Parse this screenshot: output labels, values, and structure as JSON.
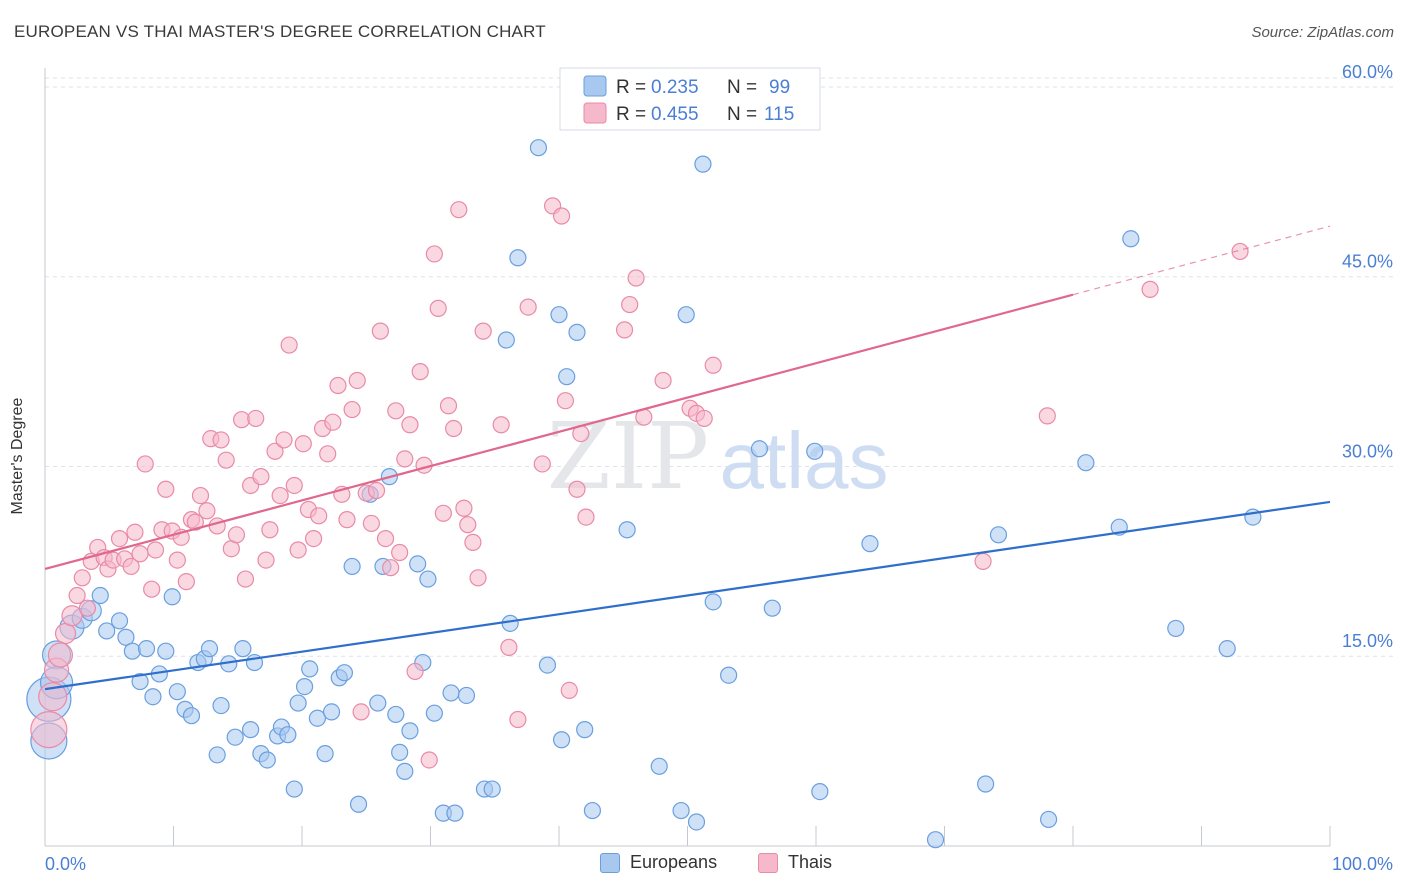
{
  "title": "EUROPEAN VS THAI MASTER'S DEGREE CORRELATION CHART",
  "source": "Source: ZipAtlas.com",
  "watermark": {
    "part1": "ZIP",
    "part2": "atlas"
  },
  "colors": {
    "blue_fill": "#a8c8f0",
    "blue_stroke": "#6a9fdf",
    "blue_line": "#2f6fcc",
    "pink_fill": "#f6b8cb",
    "pink_stroke": "#e98aa8",
    "pink_line": "#e0688f",
    "grid": "#dde2ea",
    "tick_text": "#4a7fd4"
  },
  "stats": [
    {
      "r_label": "R = ",
      "r_value": "0.235",
      "n_label": "N = ",
      "n_value": "99",
      "color": "blue"
    },
    {
      "r_label": "R = ",
      "r_value": "0.455",
      "n_label": "N = ",
      "n_value": "115",
      "color": "pink"
    }
  ],
  "legend": [
    {
      "label": "Europeans",
      "color": "blue"
    },
    {
      "label": "Thais",
      "color": "pink"
    }
  ],
  "chart_data": {
    "type": "scatter",
    "title": "EUROPEAN VS THAI MASTER'S DEGREE CORRELATION CHART",
    "xlabel": "",
    "ylabel": "Master's Degree",
    "xlim": [
      0,
      100
    ],
    "ylim": [
      0,
      61.5
    ],
    "x_tick_labels": [
      "0.0%",
      "100.0%"
    ],
    "y_ticks": [
      15,
      30,
      45,
      60
    ],
    "y_tick_labels": [
      "15.0%",
      "30.0%",
      "45.0%",
      "60.0%"
    ],
    "grid": "horizontal dashed",
    "legend_position": "bottom-center",
    "series": [
      {
        "name": "Europeans",
        "color": "blue",
        "trend": {
          "x0": 0,
          "y0": 12.4,
          "x1": 100,
          "y1": 27.2,
          "dashed_from": null
        },
        "points": [
          [
            0.3,
            8.3,
            1.8
          ],
          [
            0.3,
            11.6,
            2.2
          ],
          [
            0.9,
            15.1,
            1.4
          ],
          [
            0.9,
            12.9,
            1.6
          ],
          [
            2.1,
            17.3,
            1.2
          ],
          [
            2.9,
            18.0,
            1.0
          ],
          [
            3.6,
            18.6,
            1.0
          ],
          [
            4.3,
            19.8,
            0.8
          ],
          [
            4.8,
            17.0,
            0.8
          ],
          [
            5.8,
            17.8,
            0.8
          ],
          [
            6.3,
            16.5,
            0.8
          ],
          [
            6.8,
            15.4,
            0.8
          ],
          [
            7.4,
            13.0,
            0.8
          ],
          [
            7.9,
            15.6,
            0.8
          ],
          [
            8.4,
            11.8,
            0.8
          ],
          [
            8.9,
            13.6,
            0.8
          ],
          [
            9.4,
            15.4,
            0.8
          ],
          [
            9.9,
            19.7,
            0.8
          ],
          [
            10.3,
            12.2,
            0.8
          ],
          [
            10.9,
            10.8,
            0.8
          ],
          [
            11.4,
            10.3,
            0.8
          ],
          [
            11.9,
            14.5,
            0.8
          ],
          [
            12.4,
            14.8,
            0.8
          ],
          [
            12.8,
            15.6,
            0.8
          ],
          [
            13.4,
            7.2,
            0.8
          ],
          [
            13.7,
            11.1,
            0.8
          ],
          [
            14.3,
            14.4,
            0.8
          ],
          [
            14.8,
            8.6,
            0.8
          ],
          [
            15.4,
            15.6,
            0.8
          ],
          [
            16.0,
            9.2,
            0.8
          ],
          [
            16.3,
            14.5,
            0.8
          ],
          [
            16.8,
            7.3,
            0.8
          ],
          [
            17.3,
            6.8,
            0.8
          ],
          [
            18.1,
            8.7,
            0.8
          ],
          [
            18.4,
            9.4,
            0.8
          ],
          [
            18.9,
            8.8,
            0.8
          ],
          [
            19.4,
            4.5,
            0.8
          ],
          [
            19.7,
            11.3,
            0.8
          ],
          [
            20.2,
            12.6,
            0.8
          ],
          [
            20.6,
            14.0,
            0.8
          ],
          [
            21.2,
            10.1,
            0.8
          ],
          [
            21.8,
            7.3,
            0.8
          ],
          [
            22.3,
            10.6,
            0.8
          ],
          [
            22.9,
            13.3,
            0.8
          ],
          [
            23.3,
            13.7,
            0.8
          ],
          [
            23.9,
            22.1,
            0.8
          ],
          [
            24.4,
            3.3,
            0.8
          ],
          [
            25.3,
            27.8,
            0.8
          ],
          [
            25.9,
            11.3,
            0.8
          ],
          [
            26.3,
            22.1,
            0.8
          ],
          [
            26.8,
            29.2,
            0.8
          ],
          [
            27.3,
            10.4,
            0.8
          ],
          [
            27.6,
            7.4,
            0.8
          ],
          [
            28.0,
            5.9,
            0.8
          ],
          [
            28.4,
            9.1,
            0.8
          ],
          [
            29.0,
            22.3,
            0.8
          ],
          [
            29.4,
            14.5,
            0.8
          ],
          [
            29.8,
            21.1,
            0.8
          ],
          [
            30.3,
            10.5,
            0.8
          ],
          [
            31.0,
            2.6,
            0.8
          ],
          [
            31.6,
            12.1,
            0.8
          ],
          [
            31.9,
            2.6,
            0.8
          ],
          [
            32.8,
            11.9,
            0.8
          ],
          [
            34.2,
            4.5,
            0.8
          ],
          [
            34.8,
            4.5,
            0.8
          ],
          [
            35.9,
            40.0,
            0.8
          ],
          [
            36.2,
            17.6,
            0.8
          ],
          [
            36.8,
            46.5,
            0.8
          ],
          [
            38.4,
            55.2,
            0.8
          ],
          [
            39.1,
            14.3,
            0.8
          ],
          [
            40.0,
            42.0,
            0.8
          ],
          [
            40.2,
            8.4,
            0.8
          ],
          [
            40.6,
            37.1,
            0.8
          ],
          [
            41.4,
            40.6,
            0.8
          ],
          [
            42.0,
            9.2,
            0.8
          ],
          [
            42.6,
            2.8,
            0.8
          ],
          [
            45.3,
            25.0,
            0.8
          ],
          [
            47.8,
            6.3,
            0.8
          ],
          [
            49.5,
            2.8,
            0.8
          ],
          [
            49.9,
            42.0,
            0.8
          ],
          [
            50.7,
            1.9,
            0.8
          ],
          [
            51.2,
            53.9,
            0.8
          ],
          [
            52.0,
            19.3,
            0.8
          ],
          [
            53.2,
            13.5,
            0.8
          ],
          [
            55.6,
            31.4,
            0.8
          ],
          [
            56.6,
            18.8,
            0.8
          ],
          [
            58.8,
            58.7,
            0.8
          ],
          [
            59.9,
            31.2,
            0.8
          ],
          [
            60.3,
            4.3,
            0.8
          ],
          [
            64.2,
            23.9,
            0.8
          ],
          [
            69.3,
            0.5,
            0.8
          ],
          [
            73.2,
            4.9,
            0.8
          ],
          [
            74.2,
            24.6,
            0.8
          ],
          [
            78.1,
            2.1,
            0.8
          ],
          [
            81.0,
            30.3,
            0.8
          ],
          [
            83.6,
            25.2,
            0.8
          ],
          [
            84.5,
            48.0,
            0.8
          ],
          [
            88.0,
            17.2,
            0.8
          ],
          [
            92.0,
            15.6,
            0.8
          ],
          [
            94.0,
            26.0,
            0.8
          ]
        ]
      },
      {
        "name": "Thais",
        "color": "pink",
        "trend": {
          "x0": 0,
          "y0": 21.9,
          "x1": 100,
          "y1": 49.0,
          "dashed_from": 80
        },
        "points": [
          [
            0.3,
            9.2,
            1.8
          ],
          [
            0.6,
            11.8,
            1.4
          ],
          [
            0.9,
            13.9,
            1.2
          ],
          [
            1.2,
            15.1,
            1.2
          ],
          [
            1.6,
            16.8,
            1.0
          ],
          [
            2.1,
            18.2,
            1.0
          ],
          [
            2.5,
            19.8,
            0.8
          ],
          [
            2.9,
            21.2,
            0.8
          ],
          [
            3.3,
            18.8,
            0.8
          ],
          [
            3.6,
            22.5,
            0.8
          ],
          [
            4.1,
            23.6,
            0.8
          ],
          [
            4.6,
            22.8,
            0.8
          ],
          [
            4.9,
            21.9,
            0.8
          ],
          [
            5.3,
            22.6,
            0.8
          ],
          [
            5.8,
            24.3,
            0.8
          ],
          [
            6.2,
            22.7,
            0.8
          ],
          [
            6.7,
            22.1,
            0.8
          ],
          [
            7.0,
            24.8,
            0.8
          ],
          [
            7.4,
            23.1,
            0.8
          ],
          [
            7.8,
            30.2,
            0.8
          ],
          [
            8.3,
            20.3,
            0.8
          ],
          [
            8.6,
            23.4,
            0.8
          ],
          [
            9.1,
            25.0,
            0.8
          ],
          [
            9.4,
            28.2,
            0.8
          ],
          [
            9.9,
            24.9,
            0.8
          ],
          [
            10.3,
            22.6,
            0.8
          ],
          [
            10.6,
            24.4,
            0.8
          ],
          [
            11.0,
            20.9,
            0.8
          ],
          [
            11.4,
            25.8,
            0.8
          ],
          [
            11.7,
            25.6,
            0.8
          ],
          [
            12.1,
            27.7,
            0.8
          ],
          [
            12.6,
            26.5,
            0.8
          ],
          [
            12.9,
            32.2,
            0.8
          ],
          [
            13.4,
            25.3,
            0.8
          ],
          [
            13.7,
            32.1,
            0.8
          ],
          [
            14.1,
            30.5,
            0.8
          ],
          [
            14.5,
            23.5,
            0.8
          ],
          [
            14.9,
            24.6,
            0.8
          ],
          [
            15.3,
            33.7,
            0.8
          ],
          [
            15.6,
            21.1,
            0.8
          ],
          [
            16.0,
            28.5,
            0.8
          ],
          [
            16.4,
            33.8,
            0.8
          ],
          [
            16.8,
            29.2,
            0.8
          ],
          [
            17.2,
            22.6,
            0.8
          ],
          [
            17.5,
            25.0,
            0.8
          ],
          [
            17.9,
            31.2,
            0.8
          ],
          [
            18.3,
            27.7,
            0.8
          ],
          [
            18.6,
            32.1,
            0.8
          ],
          [
            19.0,
            39.6,
            0.8
          ],
          [
            19.4,
            28.5,
            0.8
          ],
          [
            19.7,
            23.4,
            0.8
          ],
          [
            20.1,
            31.8,
            0.8
          ],
          [
            20.5,
            26.6,
            0.8
          ],
          [
            20.9,
            24.3,
            0.8
          ],
          [
            21.3,
            26.1,
            0.8
          ],
          [
            21.6,
            33.0,
            0.8
          ],
          [
            22.0,
            31.0,
            0.8
          ],
          [
            22.4,
            33.5,
            0.8
          ],
          [
            22.8,
            36.4,
            0.8
          ],
          [
            23.1,
            27.8,
            0.8
          ],
          [
            23.5,
            25.8,
            0.8
          ],
          [
            23.9,
            34.5,
            0.8
          ],
          [
            24.3,
            36.8,
            0.8
          ],
          [
            24.6,
            10.6,
            0.8
          ],
          [
            25.0,
            27.9,
            0.8
          ],
          [
            25.4,
            25.5,
            0.8
          ],
          [
            25.8,
            28.1,
            0.8
          ],
          [
            26.1,
            40.7,
            0.8
          ],
          [
            26.5,
            24.3,
            0.8
          ],
          [
            26.9,
            22.0,
            0.8
          ],
          [
            27.3,
            34.4,
            0.8
          ],
          [
            27.6,
            23.2,
            0.8
          ],
          [
            28.0,
            30.6,
            0.8
          ],
          [
            28.4,
            33.3,
            0.8
          ],
          [
            28.8,
            13.8,
            0.8
          ],
          [
            29.2,
            37.5,
            0.8
          ],
          [
            29.5,
            30.1,
            0.8
          ],
          [
            29.9,
            6.8,
            0.8
          ],
          [
            30.3,
            46.8,
            0.8
          ],
          [
            30.6,
            42.5,
            0.8
          ],
          [
            31.0,
            26.3,
            0.8
          ],
          [
            31.4,
            34.8,
            0.8
          ],
          [
            31.8,
            33.0,
            0.8
          ],
          [
            32.2,
            50.3,
            0.8
          ],
          [
            32.6,
            26.7,
            0.8
          ],
          [
            32.9,
            25.4,
            0.8
          ],
          [
            33.3,
            24.0,
            0.8
          ],
          [
            33.7,
            21.2,
            0.8
          ],
          [
            34.1,
            40.7,
            0.8
          ],
          [
            35.5,
            33.3,
            0.8
          ],
          [
            36.1,
            15.7,
            0.8
          ],
          [
            36.8,
            10.0,
            0.8
          ],
          [
            37.6,
            42.6,
            0.8
          ],
          [
            38.7,
            30.2,
            0.8
          ],
          [
            39.5,
            50.6,
            0.8
          ],
          [
            40.2,
            49.8,
            0.8
          ],
          [
            40.5,
            35.2,
            0.8
          ],
          [
            40.8,
            12.3,
            0.8
          ],
          [
            41.4,
            28.2,
            0.8
          ],
          [
            41.7,
            32.6,
            0.8
          ],
          [
            42.1,
            26.0,
            0.8
          ],
          [
            45.1,
            40.8,
            0.8
          ],
          [
            45.5,
            42.8,
            0.8
          ],
          [
            46.0,
            44.9,
            0.8
          ],
          [
            46.6,
            33.9,
            0.8
          ],
          [
            48.1,
            36.8,
            0.8
          ],
          [
            50.2,
            34.6,
            0.8
          ],
          [
            50.7,
            34.2,
            0.8
          ],
          [
            51.3,
            33.8,
            0.8
          ],
          [
            52.0,
            38.0,
            0.8
          ],
          [
            73.0,
            22.5,
            0.8
          ],
          [
            78.0,
            34.0,
            0.8
          ],
          [
            86.0,
            44.0,
            0.8
          ],
          [
            93.0,
            47.0,
            0.8
          ]
        ]
      }
    ]
  }
}
